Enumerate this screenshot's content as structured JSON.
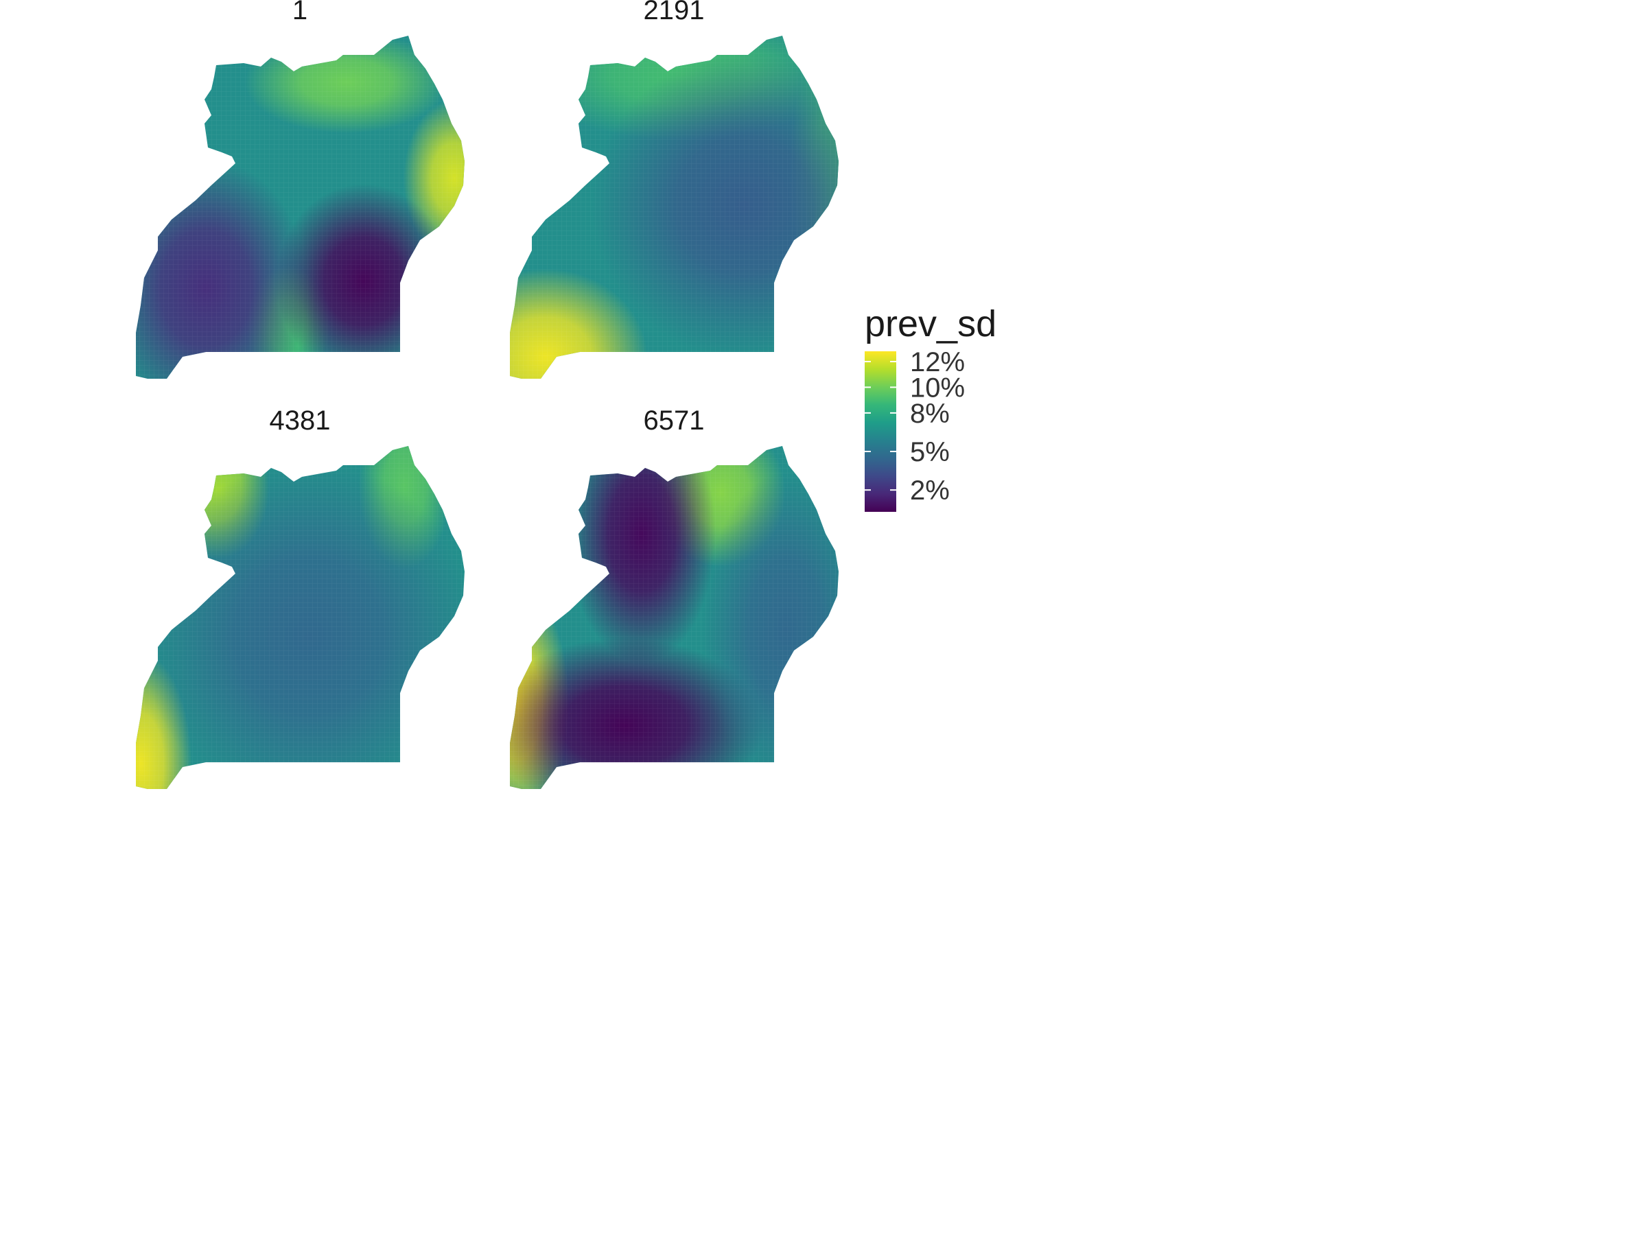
{
  "chart_data": {
    "type": "heatmap",
    "subtype": "faceted choropleth raster (Uganda outline)",
    "fill_variable": "prev_sd",
    "colormap": "viridis",
    "colors": {
      "low": "#440154",
      "mid": "#21918c",
      "high": "#fde725"
    },
    "grid": false,
    "legend": {
      "title": "prev_sd",
      "placement": "right",
      "range": [
        0.3,
        12.8
      ],
      "ticks": [
        2,
        5,
        8,
        10,
        12
      ],
      "tick_labels": [
        "2%",
        "5%",
        "8%",
        "10%",
        "12%"
      ]
    },
    "facets": [
      {
        "title": "1",
        "hotspots": [
          {
            "region": "north-center",
            "value": 10
          },
          {
            "region": "east-edge",
            "value": 12
          },
          {
            "region": "south-center-strip",
            "value": 9
          }
        ],
        "coldspots": [
          {
            "region": "south-east-center",
            "value": 0.5
          },
          {
            "region": "south-west",
            "value": 2
          }
        ]
      },
      {
        "title": "2191",
        "hotspots": [
          {
            "region": "south-west-corner",
            "value": 12.5
          },
          {
            "region": "north-edge",
            "value": 9
          },
          {
            "region": "east-edge",
            "value": 9
          }
        ],
        "coldspots": [
          {
            "region": "center-east",
            "value": 4
          }
        ]
      },
      {
        "title": "4381",
        "hotspots": [
          {
            "region": "south-west-edge",
            "value": 12.5
          },
          {
            "region": "north-west-tip",
            "value": 11
          },
          {
            "region": "north-east-tip",
            "value": 9.5
          }
        ],
        "coldspots": [
          {
            "region": "center",
            "value": 4.5
          }
        ]
      },
      {
        "title": "6571",
        "hotspots": [
          {
            "region": "south-west-edge",
            "value": 12.5
          },
          {
            "region": "north-center",
            "value": 10.5
          }
        ],
        "coldspots": [
          {
            "region": "north-west-center",
            "value": 0.6
          },
          {
            "region": "south-center",
            "value": 0.4
          },
          {
            "region": "east",
            "value": 4.5
          }
        ]
      }
    ]
  }
}
